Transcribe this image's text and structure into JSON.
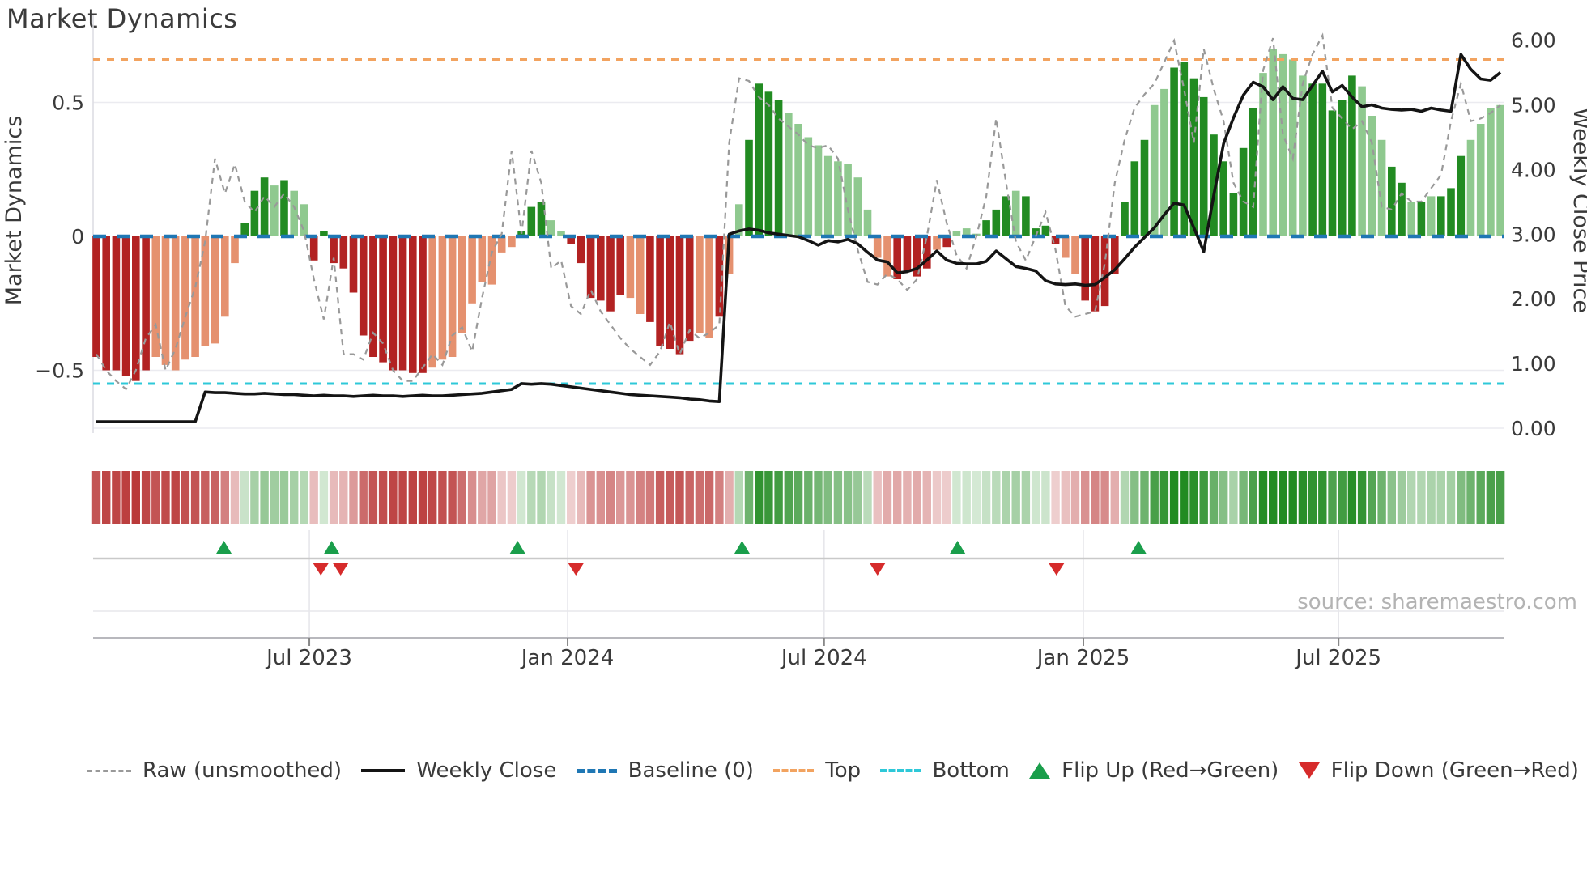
{
  "title": "Market Dynamics",
  "source_text": "source: sharemaestro.com",
  "legend": {
    "items": [
      {
        "label": "Raw (unsmoothed)",
        "swatch": "dash-gray",
        "color": "#999999"
      },
      {
        "label": "Weekly Close",
        "swatch": "solid-black",
        "color": "#141414"
      },
      {
        "label": "Baseline (0)",
        "swatch": "dash-blue",
        "color": "#1f77b4"
      },
      {
        "label": "Top",
        "swatch": "dash-orange",
        "color": "#f2a360"
      },
      {
        "label": "Bottom",
        "swatch": "dash-cyan",
        "color": "#2ec8d8"
      },
      {
        "label": "Flip Up (Red→Green)",
        "swatch": "tri-up",
        "color": "#1a9e4b"
      },
      {
        "label": "Flip Down (Green→Red)",
        "swatch": "tri-down",
        "color": "#d62b2b"
      }
    ]
  },
  "chart_data": {
    "type": "mixed",
    "title": "Market Dynamics",
    "weeks_total": 143,
    "left_axis": {
      "label": "Market Dynamics",
      "tick_labels": [
        "0.5",
        "0",
        "−0.5"
      ],
      "tick_values": [
        0.5,
        0,
        -0.5
      ],
      "range": [
        -0.73,
        0.82
      ],
      "grid": [
        "0.5",
        "-0.5"
      ]
    },
    "right_axis": {
      "label": "Weekly Close Price",
      "tick_labels": [
        "6.00",
        "5.00",
        "4.00",
        "3.00",
        "2.00",
        "1.00",
        "0.00"
      ],
      "tick_values": [
        6,
        5,
        4,
        3,
        2,
        1,
        0
      ],
      "range": [
        -0.07,
        6.37
      ]
    },
    "x_axis": {
      "tick_labels": [
        "Jul 2023",
        "Jan 2024",
        "Jul 2024",
        "Jan 2025",
        "Jul 2025"
      ],
      "tick_weeks": [
        21.54,
        47.66,
        73.6,
        99.82,
        125.63
      ]
    },
    "reference_lines": {
      "baseline": {
        "label": "Baseline (0)",
        "value": 0,
        "color": "#1f77b4",
        "style": "dashed"
      },
      "top": {
        "label": "Top",
        "value": 0.66,
        "color": "#f2a360",
        "style": "dashed"
      },
      "bottom": {
        "label": "Bottom",
        "value": -0.55,
        "color": "#2ec8d8",
        "style": "dashed"
      }
    },
    "series": [
      {
        "name": "Oscillator",
        "type": "bar",
        "axis": "left",
        "color_pos_strong": "#228B22",
        "color_pos_weak": "#8FC98F",
        "color_neg_strong": "#B22222",
        "color_neg_weak": "#E5916F",
        "tone": "ddddddllllllllldddldlldddddddddddDlllllllllDddllDddddDlldddddlldllDddDlllllllllllDdddldlllDddlddddlldDddddDllDdddddddDlllllDdddDlllDdldlddDlllllllDdddddddd",
        "values": [
          -0.45,
          -0.5,
          -0.5,
          -0.52,
          -0.54,
          -0.5,
          -0.45,
          -0.48,
          -0.5,
          -0.46,
          -0.45,
          -0.41,
          -0.4,
          -0.3,
          -0.1,
          0.05,
          0.17,
          0.22,
          0.19,
          0.21,
          0.17,
          0.12,
          -0.09,
          0.02,
          -0.1,
          -0.12,
          -0.21,
          -0.37,
          -0.45,
          -0.47,
          -0.5,
          -0.5,
          -0.51,
          -0.51,
          -0.49,
          -0.46,
          -0.45,
          -0.36,
          -0.25,
          -0.17,
          -0.18,
          -0.06,
          -0.04,
          0.02,
          0.11,
          0.13,
          0.06,
          0.02,
          -0.03,
          -0.1,
          -0.23,
          -0.24,
          -0.28,
          -0.22,
          -0.23,
          -0.29,
          -0.32,
          -0.41,
          -0.42,
          -0.44,
          -0.39,
          -0.36,
          -0.38,
          -0.3,
          -0.14,
          0.12,
          0.36,
          0.57,
          0.54,
          0.51,
          0.46,
          0.42,
          0.37,
          0.34,
          0.3,
          0.28,
          0.27,
          0.22,
          0.1,
          -0.08,
          -0.15,
          -0.16,
          -0.13,
          -0.15,
          -0.12,
          -0.05,
          -0.04,
          0.02,
          0.03,
          0.01,
          0.06,
          0.1,
          0.15,
          0.17,
          0.15,
          0.03,
          0.04,
          -0.03,
          -0.08,
          -0.14,
          -0.24,
          -0.28,
          -0.26,
          -0.14,
          0.13,
          0.28,
          0.36,
          0.49,
          0.55,
          0.63,
          0.65,
          0.59,
          0.52,
          0.38,
          0.28,
          0.16,
          0.33,
          0.48,
          0.61,
          0.7,
          0.68,
          0.66,
          0.6,
          0.57,
          0.57,
          0.47,
          0.51,
          0.6,
          0.56,
          0.45,
          0.36,
          0.26,
          0.2,
          0.13,
          0.13,
          0.15,
          0.15,
          0.18,
          0.3,
          0.36,
          0.42,
          0.48,
          0.49
        ]
      },
      {
        "name": "Raw (unsmoothed)",
        "type": "line",
        "axis": "left",
        "style": "dashed",
        "color": "#999999",
        "values": [
          -0.44,
          -0.5,
          -0.54,
          -0.57,
          -0.5,
          -0.38,
          -0.33,
          -0.5,
          -0.42,
          -0.3,
          -0.19,
          -0.02,
          0.29,
          0.16,
          0.27,
          0.13,
          0.09,
          0.15,
          0.11,
          0.16,
          0.11,
          0.02,
          -0.16,
          -0.31,
          -0.08,
          -0.44,
          -0.44,
          -0.46,
          -0.36,
          -0.4,
          -0.5,
          -0.54,
          -0.54,
          -0.49,
          -0.44,
          -0.48,
          -0.37,
          -0.34,
          -0.43,
          -0.23,
          -0.06,
          0.01,
          0.32,
          0.01,
          0.32,
          0.2,
          -0.12,
          -0.09,
          -0.26,
          -0.29,
          -0.2,
          -0.28,
          -0.33,
          -0.38,
          -0.42,
          -0.45,
          -0.48,
          -0.43,
          -0.32,
          -0.44,
          -0.35,
          -0.38,
          -0.36,
          -0.33,
          0.35,
          0.59,
          0.58,
          0.52,
          0.49,
          0.44,
          0.41,
          0.38,
          0.34,
          0.33,
          0.34,
          0.29,
          0.1,
          -0.05,
          -0.17,
          -0.18,
          -0.14,
          -0.16,
          -0.2,
          -0.16,
          0.0,
          0.21,
          0.05,
          -0.07,
          -0.12,
          0.0,
          0.15,
          0.44,
          0.2,
          -0.02,
          -0.09,
          0.0,
          0.09,
          -0.05,
          -0.26,
          -0.3,
          -0.29,
          -0.28,
          -0.1,
          0.2,
          0.36,
          0.48,
          0.53,
          0.57,
          0.65,
          0.73,
          0.55,
          0.35,
          0.7,
          0.55,
          0.43,
          0.2,
          0.13,
          0.11,
          0.62,
          0.74,
          0.38,
          0.29,
          0.57,
          0.68,
          0.75,
          0.48,
          0.44,
          0.4,
          0.43,
          0.35,
          0.11,
          0.1,
          0.16,
          0.13,
          0.13,
          0.18,
          0.23,
          0.43,
          0.57,
          0.43,
          0.44,
          0.46,
          0.49
        ]
      },
      {
        "name": "Weekly Close",
        "type": "line",
        "axis": "right",
        "style": "solid",
        "color": "#141414",
        "values": [
          0.1,
          0.1,
          0.1,
          0.1,
          0.1,
          0.1,
          0.1,
          0.1,
          0.1,
          0.1,
          0.1,
          0.56,
          0.55,
          0.55,
          0.54,
          0.53,
          0.53,
          0.54,
          0.53,
          0.52,
          0.52,
          0.51,
          0.5,
          0.51,
          0.5,
          0.5,
          0.49,
          0.5,
          0.51,
          0.5,
          0.5,
          0.49,
          0.5,
          0.51,
          0.5,
          0.5,
          0.51,
          0.52,
          0.53,
          0.54,
          0.56,
          0.58,
          0.6,
          0.69,
          0.68,
          0.69,
          0.68,
          0.66,
          0.64,
          0.62,
          0.6,
          0.58,
          0.56,
          0.54,
          0.52,
          0.51,
          0.5,
          0.49,
          0.48,
          0.47,
          0.45,
          0.44,
          0.42,
          0.41,
          3.0,
          3.05,
          3.08,
          3.06,
          3.02,
          3.0,
          2.98,
          2.96,
          2.9,
          2.83,
          2.9,
          2.88,
          2.92,
          2.85,
          2.72,
          2.6,
          2.57,
          2.4,
          2.42,
          2.47,
          2.6,
          2.74,
          2.6,
          2.55,
          2.54,
          2.54,
          2.58,
          2.74,
          2.62,
          2.5,
          2.47,
          2.43,
          2.28,
          2.23,
          2.22,
          2.23,
          2.21,
          2.22,
          2.33,
          2.45,
          2.62,
          2.8,
          2.95,
          3.1,
          3.3,
          3.48,
          3.45,
          3.1,
          2.73,
          3.6,
          4.4,
          4.8,
          5.15,
          5.35,
          5.28,
          5.08,
          5.28,
          5.1,
          5.08,
          5.3,
          5.52,
          5.2,
          5.3,
          5.12,
          4.97,
          5.0,
          4.95,
          4.93,
          4.92,
          4.93,
          4.9,
          4.95,
          4.92,
          4.9,
          5.78,
          5.55,
          5.4,
          5.38,
          5.5
        ]
      }
    ],
    "markers": {
      "flip_up_label": "Flip Up (Red→Green)",
      "flip_down_label": "Flip Down (Green→Red)",
      "flip_up_weeks": [
        12.9,
        23.8,
        42.6,
        65.3,
        87.1,
        105.4
      ],
      "flip_down_weeks": [
        22.7,
        24.7,
        48.5,
        79.0,
        97.1
      ],
      "up_color": "#1a9e4b",
      "down_color": "#d62b2b"
    },
    "heatmap": {
      "derived_from": "Oscillator values",
      "pos_base": "#228B22",
      "neg_base": "#B22222"
    }
  }
}
